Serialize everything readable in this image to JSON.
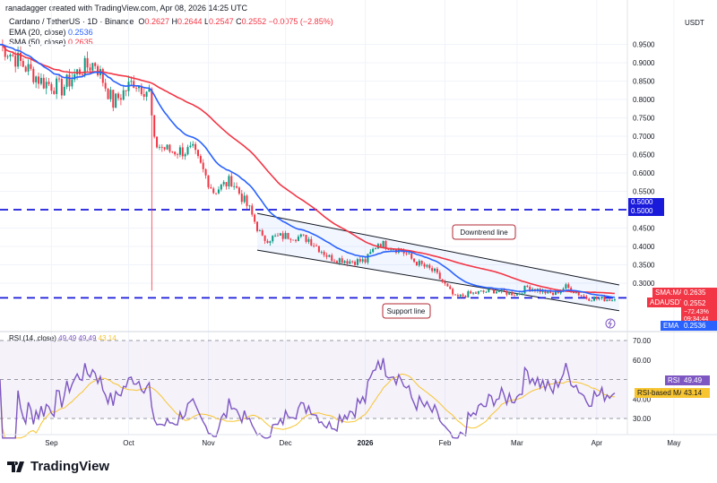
{
  "header": {
    "credit": "ranadagger created with TradingView.com, Apr 08, 2026 14:25 UTC"
  },
  "legend": {
    "symbol": "Cardano / TetherUS · 1D · Binance",
    "o_label": "O",
    "o": "0.2627",
    "h_label": "H",
    "h": "0.2644",
    "l_label": "L",
    "l": "0.2547",
    "c_label": "C",
    "c": "0.2552",
    "change": "−0.0075 (−2.85%)",
    "ema_label": "EMA (20, close)",
    "ema_value": "0.2536",
    "sma_label": "SMA (50, close)",
    "sma_value": "0.2635",
    "rsi_label": "RSI (14, close)",
    "rsi_value": "49.49",
    "rsi_value2": "49.49",
    "rsi_ma_value": "43.14"
  },
  "price_axis": {
    "currency": "USDT",
    "ticks": [
      "0.9500",
      "0.9000",
      "0.8500",
      "0.8000",
      "0.7500",
      "0.7000",
      "0.6500",
      "0.6000",
      "0.5500",
      "0.4500",
      "0.4000",
      "0.3500",
      "0.3000"
    ]
  },
  "price_labels": {
    "level_top": "0.5000",
    "level_bottom": "0.5000",
    "sma_tag": "SMA:MA",
    "sma_val": "0.2635",
    "sym_tag": "ADAUSDT",
    "sym_val": "0.2552",
    "sym_pct": "−72.43%",
    "countdown": "09:34:44",
    "ema_tag": "EMA",
    "ema_val": "0.2536"
  },
  "rsi_axis": {
    "ticks": [
      "70.00",
      "60.00",
      "40.00",
      "30.00"
    ],
    "rsi_tag": "RSI",
    "rsi_val": "49.49",
    "ma_tag": "RSI-based MA",
    "ma_val": "43.14"
  },
  "time_axis": [
    "Sep",
    "Oct",
    "Nov",
    "Dec",
    "2026",
    "Feb",
    "Mar",
    "Apr",
    "May"
  ],
  "annotations": {
    "downtrend": "Downtrend line",
    "support": "Support line"
  },
  "footer": {
    "brand": "TradingView"
  },
  "colors": {
    "up": "#089981",
    "down": "#f23645",
    "ema": "#2962ff",
    "sma": "#f23645",
    "rsi": "#7e57c2",
    "rsi_ma": "#f7c531",
    "level": "#1a1adb"
  },
  "chart_data": {
    "type": "candlestick",
    "scale": "linear",
    "ylim": [
      0.22,
      0.98
    ],
    "rsi_ylim": [
      20,
      80
    ],
    "x_range": [
      "2025-08-12",
      "2026-05-10"
    ],
    "close_keypoints": [
      [
        "2025-08-12",
        0.95
      ],
      [
        "2025-08-20",
        0.9
      ],
      [
        "2025-08-28",
        0.85
      ],
      [
        "2025-09-05",
        0.83
      ],
      [
        "2025-09-12",
        0.88
      ],
      [
        "2025-09-18",
        0.9
      ],
      [
        "2025-09-25",
        0.79
      ],
      [
        "2025-10-03",
        0.85
      ],
      [
        "2025-10-09",
        0.82
      ],
      [
        "2025-10-11",
        0.68
      ],
      [
        "2025-10-17",
        0.66
      ],
      [
        "2025-10-26",
        0.66
      ],
      [
        "2025-11-03",
        0.55
      ],
      [
        "2025-11-10",
        0.58
      ],
      [
        "2025-11-17",
        0.5
      ],
      [
        "2025-11-22",
        0.42
      ],
      [
        "2025-12-03",
        0.43
      ],
      [
        "2025-12-10",
        0.42
      ],
      [
        "2025-12-18",
        0.37
      ],
      [
        "2025-12-26",
        0.36
      ],
      [
        "2026-01-01",
        0.36
      ],
      [
        "2026-01-06",
        0.41
      ],
      [
        "2026-01-15",
        0.39
      ],
      [
        "2026-01-20",
        0.36
      ],
      [
        "2026-01-28",
        0.33
      ],
      [
        "2026-02-05",
        0.26
      ],
      [
        "2026-02-10",
        0.27
      ],
      [
        "2026-02-20",
        0.28
      ],
      [
        "2026-03-01",
        0.27
      ],
      [
        "2026-03-05",
        0.29
      ],
      [
        "2026-03-15",
        0.27
      ],
      [
        "2026-03-20",
        0.29
      ],
      [
        "2026-03-28",
        0.26
      ],
      [
        "2026-04-08",
        0.2552
      ]
    ],
    "oct10_low": 0.28,
    "horizontal_levels": [
      0.5,
      0.26
    ],
    "channel": {
      "upper": [
        [
          "2025-11-20",
          0.49
        ],
        [
          "2026-04-08",
          0.295
        ]
      ],
      "lower": [
        [
          "2025-11-20",
          0.39
        ],
        [
          "2026-04-08",
          0.225
        ]
      ]
    },
    "indicators": [
      "EMA 20",
      "SMA 50",
      "RSI 14",
      "RSI-based MA 14"
    ],
    "rsi_levels": [
      70,
      50,
      30
    ]
  }
}
